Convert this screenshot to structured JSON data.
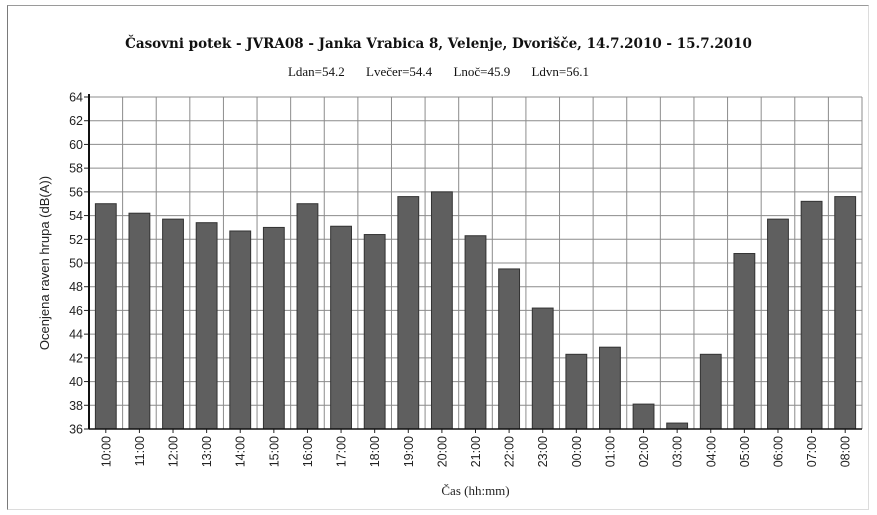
{
  "chart_data": {
    "type": "bar",
    "title": "Časovni potek - JVRA08 - Janka Vrabica 8, Velenje, Dvorišče, 14.7.2010 - 15.7.2010",
    "stats": [
      "Ldan=54.2",
      "Lvečer=54.4",
      "Lnoč=45.9",
      "Ldvn=56.1"
    ],
    "xlabel": "Čas (hh:mm)",
    "ylabel": "Ocenjena raven hrupa (dB(A))",
    "ylim": [
      36,
      64
    ],
    "yticks": [
      36,
      38,
      40,
      42,
      44,
      46,
      48,
      50,
      52,
      54,
      56,
      58,
      60,
      62,
      64
    ],
    "grid": true,
    "bar_color": "#5f5f5f",
    "categories": [
      "10:00",
      "11:00",
      "12:00",
      "13:00",
      "14:00",
      "15:00",
      "16:00",
      "17:00",
      "18:00",
      "19:00",
      "20:00",
      "21:00",
      "22:00",
      "23:00",
      "00:00",
      "01:00",
      "02:00",
      "03:00",
      "04:00",
      "05:00",
      "06:00",
      "07:00",
      "08:00"
    ],
    "values": [
      55.0,
      54.2,
      53.7,
      53.4,
      52.7,
      53.0,
      55.0,
      53.1,
      52.4,
      55.6,
      56.0,
      52.3,
      49.5,
      46.2,
      42.3,
      42.9,
      38.1,
      36.5,
      42.3,
      50.8,
      53.7,
      55.2,
      55.6
    ]
  }
}
